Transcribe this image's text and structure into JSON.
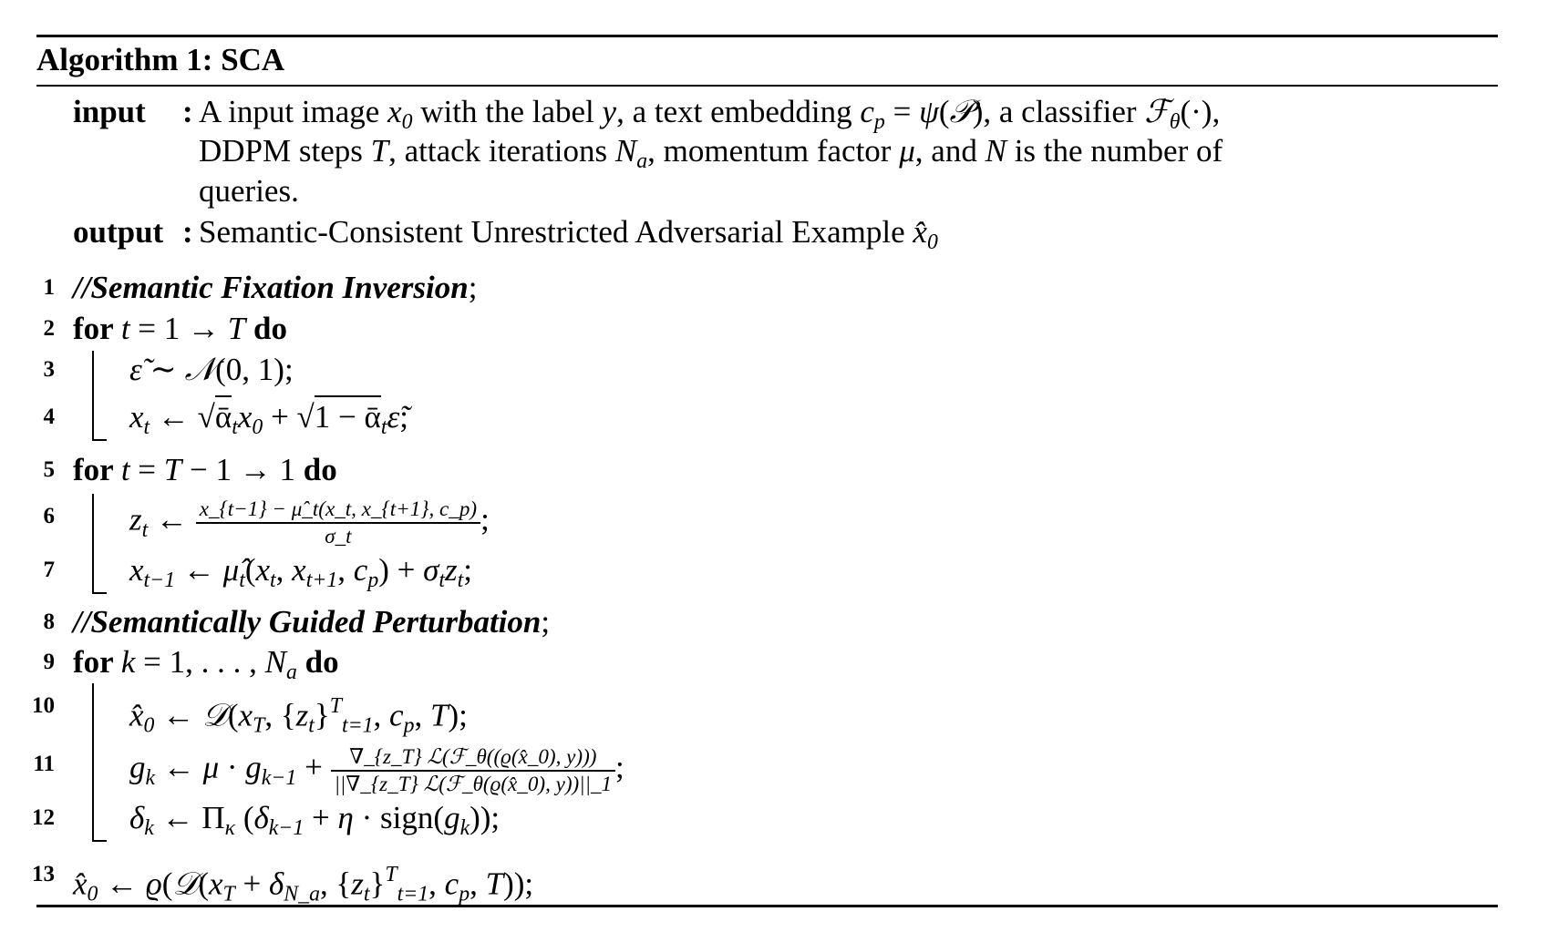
{
  "title": "Algorithm 1: SCA",
  "input_label": "input",
  "output_label": "output",
  "input_lines": [
    [
      {
        "k": "rm",
        "s": "A input image "
      },
      {
        "k": "it",
        "s": "x"
      },
      {
        "k": "sub",
        "s": "0"
      },
      {
        "k": "rm",
        "s": " with the label "
      },
      {
        "k": "it",
        "s": "y"
      },
      {
        "k": "rm",
        "s": ", a text embedding "
      },
      {
        "k": "it",
        "s": "c"
      },
      {
        "k": "sub",
        "s": "p"
      },
      {
        "k": "rm",
        "s": " = "
      },
      {
        "k": "it",
        "s": "ψ"
      },
      {
        "k": "rm",
        "s": "("
      },
      {
        "k": "it",
        "s": "𝒫"
      },
      {
        "k": "rm",
        "s": "), a classifier "
      },
      {
        "k": "it",
        "s": "ℱ"
      },
      {
        "k": "sub",
        "s": "θ"
      },
      {
        "k": "rm",
        "s": "(·),"
      }
    ],
    [
      {
        "k": "rm",
        "s": "DDPM steps "
      },
      {
        "k": "it",
        "s": "T"
      },
      {
        "k": "rm",
        "s": ", attack iterations "
      },
      {
        "k": "it",
        "s": "N"
      },
      {
        "k": "sub",
        "s": "a"
      },
      {
        "k": "rm",
        "s": ", momentum factor "
      },
      {
        "k": "it",
        "s": "μ"
      },
      {
        "k": "rm",
        "s": ", and "
      },
      {
        "k": "it",
        "s": "N"
      },
      {
        "k": "rm",
        "s": " is the number of"
      }
    ],
    [
      {
        "k": "rm",
        "s": "queries."
      }
    ]
  ],
  "output_line": [
    {
      "k": "rm",
      "s": "Semantic-Consistent Unrestricted Adversarial Example "
    },
    {
      "k": "it",
      "s": "x̂"
    },
    {
      "k": "sub",
      "s": "0"
    }
  ],
  "steps": [
    {
      "num": "1",
      "indent": 0,
      "segs": [
        {
          "k": "cm",
          "s": "//Semantic Fixation Inversion"
        },
        {
          "k": "rm",
          "s": ";"
        }
      ]
    },
    {
      "num": "2",
      "indent": 0,
      "segs": [
        {
          "k": "kw",
          "s": "for "
        },
        {
          "k": "it",
          "s": "t"
        },
        {
          "k": "rm",
          "s": " = 1 → "
        },
        {
          "k": "it",
          "s": "T"
        },
        {
          "k": "kw",
          "s": " do"
        }
      ]
    },
    {
      "num": "3",
      "indent": 1,
      "segs": [
        {
          "k": "it",
          "s": "ε̃"
        },
        {
          "k": "rm",
          "s": " ∼ "
        },
        {
          "k": "it",
          "s": "𝒩"
        },
        {
          "k": "rm",
          "s": "(0, 1);"
        }
      ]
    },
    {
      "num": "4",
      "indent": 1,
      "segs": [
        {
          "k": "it",
          "s": "x"
        },
        {
          "k": "sub",
          "s": "t"
        },
        {
          "k": "rm",
          "s": " ← √"
        },
        {
          "k": "sqrt",
          "s": "ᾱ"
        },
        {
          "k": "sub",
          "s": "t"
        },
        {
          "k": "it",
          "s": "x"
        },
        {
          "k": "sub",
          "s": "0"
        },
        {
          "k": "rm",
          "s": " + √"
        },
        {
          "k": "sqrt",
          "s": "1 − ᾱ"
        },
        {
          "k": "sub",
          "s": "t"
        },
        {
          "k": "it",
          "s": "ε̃"
        },
        {
          "k": "rm",
          "s": ";"
        }
      ]
    },
    {
      "num": "5",
      "indent": 0,
      "segs": [
        {
          "k": "kw",
          "s": "for "
        },
        {
          "k": "it",
          "s": "t"
        },
        {
          "k": "rm",
          "s": " = "
        },
        {
          "k": "it",
          "s": "T"
        },
        {
          "k": "rm",
          "s": " − 1 → 1"
        },
        {
          "k": "kw",
          "s": " do"
        }
      ]
    },
    {
      "num": "6",
      "indent": 1,
      "segs": [
        {
          "k": "it",
          "s": "z"
        },
        {
          "k": "sub",
          "s": "t"
        },
        {
          "k": "rm",
          "s": " ← "
        },
        {
          "k": "frac",
          "n": "x_{t−1} − μ̂_t(x_t, x_{t+1}, c_p)",
          "d": "σ_t"
        },
        {
          "k": "rm",
          "s": ";"
        }
      ]
    },
    {
      "num": "7",
      "indent": 1,
      "segs": [
        {
          "k": "it",
          "s": "x"
        },
        {
          "k": "sub",
          "s": "t−1"
        },
        {
          "k": "rm",
          "s": " ← "
        },
        {
          "k": "it",
          "s": "μ̂"
        },
        {
          "k": "sub",
          "s": "t"
        },
        {
          "k": "rm",
          "s": "("
        },
        {
          "k": "it",
          "s": "x"
        },
        {
          "k": "sub",
          "s": "t"
        },
        {
          "k": "rm",
          "s": ", "
        },
        {
          "k": "it",
          "s": "x"
        },
        {
          "k": "sub",
          "s": "t+1"
        },
        {
          "k": "rm",
          "s": ", "
        },
        {
          "k": "it",
          "s": "c"
        },
        {
          "k": "sub",
          "s": "p"
        },
        {
          "k": "rm",
          "s": ") + "
        },
        {
          "k": "it",
          "s": "σ"
        },
        {
          "k": "sub",
          "s": "t"
        },
        {
          "k": "it",
          "s": "z"
        },
        {
          "k": "sub",
          "s": "t"
        },
        {
          "k": "rm",
          "s": ";"
        }
      ]
    },
    {
      "num": "8",
      "indent": 0,
      "segs": [
        {
          "k": "cm",
          "s": "//Semantically Guided Perturbation"
        },
        {
          "k": "rm",
          "s": ";"
        }
      ]
    },
    {
      "num": "9",
      "indent": 0,
      "segs": [
        {
          "k": "kw",
          "s": "for "
        },
        {
          "k": "it",
          "s": "k"
        },
        {
          "k": "rm",
          "s": " = 1, . . . , "
        },
        {
          "k": "it",
          "s": "N"
        },
        {
          "k": "sub",
          "s": "a"
        },
        {
          "k": "kw",
          "s": " do"
        }
      ]
    },
    {
      "num": "10",
      "indent": 1,
      "segs": [
        {
          "k": "it",
          "s": "x̂"
        },
        {
          "k": "sub",
          "s": "0"
        },
        {
          "k": "rm",
          "s": " ← "
        },
        {
          "k": "it",
          "s": "𝒟"
        },
        {
          "k": "rm",
          "s": "("
        },
        {
          "k": "it",
          "s": "x"
        },
        {
          "k": "sub",
          "s": "T"
        },
        {
          "k": "rm",
          "s": ", {"
        },
        {
          "k": "it",
          "s": "z"
        },
        {
          "k": "sub",
          "s": "t"
        },
        {
          "k": "rm",
          "s": "}"
        },
        {
          "k": "sup",
          "s": "T"
        },
        {
          "k": "sub",
          "s": "t=1"
        },
        {
          "k": "rm",
          "s": ", "
        },
        {
          "k": "it",
          "s": "c"
        },
        {
          "k": "sub",
          "s": "p"
        },
        {
          "k": "rm",
          "s": ", "
        },
        {
          "k": "it",
          "s": "T"
        },
        {
          "k": "rm",
          "s": ");"
        }
      ]
    },
    {
      "num": "11",
      "indent": 1,
      "segs": [
        {
          "k": "it",
          "s": "g"
        },
        {
          "k": "sub",
          "s": "k"
        },
        {
          "k": "rm",
          "s": " ← "
        },
        {
          "k": "it",
          "s": "μ"
        },
        {
          "k": "rm",
          "s": " · "
        },
        {
          "k": "it",
          "s": "g"
        },
        {
          "k": "sub",
          "s": "k−1"
        },
        {
          "k": "rm",
          "s": " + "
        },
        {
          "k": "frac",
          "n": "∇_{z_T} ℒ(ℱ_θ((ϱ(x̂_0), y)))",
          "d": "||∇_{z_T} ℒ(ℱ_θ(ϱ(x̂_0), y))||_1"
        },
        {
          "k": "rm",
          "s": ";"
        }
      ]
    },
    {
      "num": "12",
      "indent": 1,
      "segs": [
        {
          "k": "it",
          "s": "δ"
        },
        {
          "k": "sub",
          "s": "k"
        },
        {
          "k": "rm",
          "s": " ← Π"
        },
        {
          "k": "sub",
          "s": "κ"
        },
        {
          "k": "rm",
          "s": " ("
        },
        {
          "k": "it",
          "s": "δ"
        },
        {
          "k": "sub",
          "s": "k−1"
        },
        {
          "k": "rm",
          "s": " + "
        },
        {
          "k": "it",
          "s": "η"
        },
        {
          "k": "rm",
          "s": " · sign("
        },
        {
          "k": "it",
          "s": "g"
        },
        {
          "k": "sub",
          "s": "k"
        },
        {
          "k": "rm",
          "s": "));"
        }
      ]
    },
    {
      "num": "13",
      "indent": 0,
      "segs": [
        {
          "k": "it",
          "s": "x̂"
        },
        {
          "k": "sub",
          "s": "0"
        },
        {
          "k": "rm",
          "s": " ← "
        },
        {
          "k": "it",
          "s": "ϱ"
        },
        {
          "k": "rm",
          "s": "("
        },
        {
          "k": "it",
          "s": "𝒟"
        },
        {
          "k": "rm",
          "s": "("
        },
        {
          "k": "it",
          "s": "x"
        },
        {
          "k": "sub",
          "s": "T"
        },
        {
          "k": "rm",
          "s": " + "
        },
        {
          "k": "it",
          "s": "δ"
        },
        {
          "k": "sub",
          "s": "N_a"
        },
        {
          "k": "rm",
          "s": ", {"
        },
        {
          "k": "it",
          "s": "z"
        },
        {
          "k": "sub",
          "s": "t"
        },
        {
          "k": "rm",
          "s": "}"
        },
        {
          "k": "sup",
          "s": "T"
        },
        {
          "k": "sub",
          "s": "t=1"
        },
        {
          "k": "rm",
          "s": ", "
        },
        {
          "k": "it",
          "s": "c"
        },
        {
          "k": "sub",
          "s": "p"
        },
        {
          "k": "rm",
          "s": ", "
        },
        {
          "k": "it",
          "s": "T"
        },
        {
          "k": "rm",
          "s": "));"
        }
      ]
    }
  ]
}
